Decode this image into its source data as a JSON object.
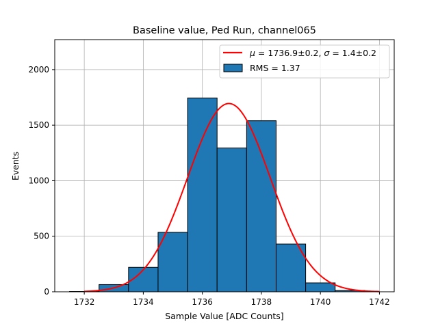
{
  "chart_data": {
    "type": "bar",
    "title": "Baseline value, Ped Run, channel065",
    "xlabel": "Sample Value [ADC Counts]",
    "ylabel": "Events",
    "xlim": [
      1731,
      1742.5
    ],
    "ylim": [
      0,
      2270
    ],
    "xticks": [
      1732,
      1734,
      1736,
      1738,
      1740,
      1742
    ],
    "yticks": [
      0,
      500,
      1000,
      1500,
      2000
    ],
    "grid": true,
    "legend_position": "top-right",
    "colors": {
      "bars": "#1f77b4",
      "fit": "#ff0000",
      "edge": "#000000"
    },
    "histogram": {
      "name": "RMS = 1.37",
      "bins": [
        {
          "x0": 1731.5,
          "x1": 1732.5,
          "value": 3
        },
        {
          "x0": 1732.5,
          "x1": 1733.5,
          "value": 65
        },
        {
          "x0": 1733.5,
          "x1": 1734.5,
          "value": 220
        },
        {
          "x0": 1734.5,
          "x1": 1735.5,
          "value": 535
        },
        {
          "x0": 1735.5,
          "x1": 1736.5,
          "value": 1745
        },
        {
          "x0": 1736.5,
          "x1": 1737.5,
          "value": 1295
        },
        {
          "x0": 1737.5,
          "x1": 1738.5,
          "value": 1540
        },
        {
          "x0": 1738.5,
          "x1": 1739.5,
          "value": 430
        },
        {
          "x0": 1739.5,
          "x1": 1740.5,
          "value": 80
        },
        {
          "x0": 1740.5,
          "x1": 1741.5,
          "value": 12
        }
      ]
    },
    "fit": {
      "name": "μ = 1736.9±0.2, σ = 1.4±0.2",
      "name_parts": [
        "μ",
        " = 1736.9±0.2, ",
        "σ",
        " = 1.4±0.2"
      ],
      "mu": 1736.9,
      "sigma": 1.4,
      "amplitude": 1695,
      "x_range": [
        1732,
        1742
      ]
    }
  }
}
